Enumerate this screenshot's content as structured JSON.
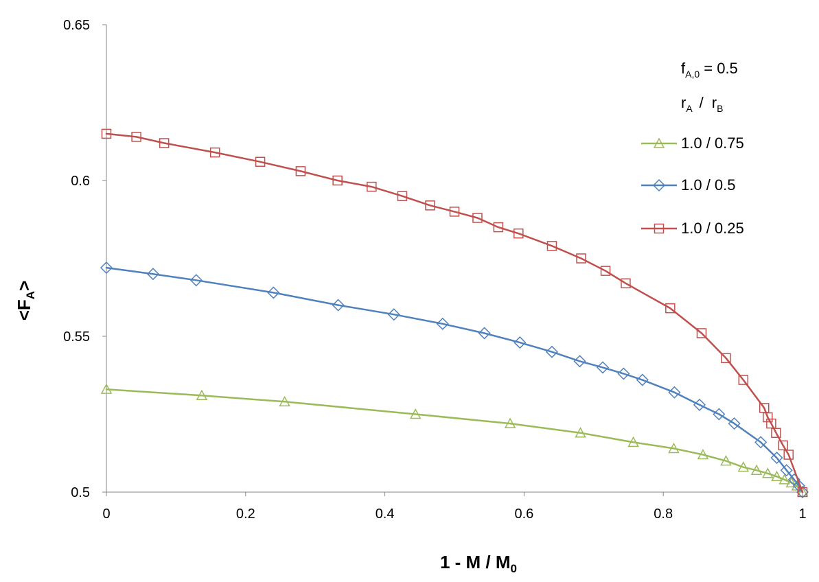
{
  "chart_data": {
    "type": "line",
    "xlabel": {
      "main": "1 - M / M",
      "sub": "0"
    },
    "ylabel": {
      "main": "<F",
      "sub": "A",
      "suffix": ">"
    },
    "xlim": [
      0,
      1
    ],
    "ylim": [
      0.5,
      0.65
    ],
    "x_ticks": [
      "0",
      "0.2",
      "0.4",
      "0.6",
      "0.8",
      "1"
    ],
    "y_ticks": [
      "0.5",
      "0.55",
      "0.6",
      "0.65"
    ],
    "grid": false,
    "legend_position": "top-right",
    "legend_header": {
      "line1": {
        "f": "f",
        "sub": "A,0",
        "rest": " = 0.5"
      },
      "line2": {
        "r1": "r",
        "sub1": "A",
        "slash": "/",
        "r2": "r",
        "sub2": "B"
      }
    },
    "series": [
      {
        "name": "1.0 / 0.75",
        "color": "#9bbb59",
        "marker": "triangle",
        "points": [
          [
            0,
            0.533
          ],
          [
            0.137,
            0.531
          ],
          [
            0.256,
            0.529
          ],
          [
            0.444,
            0.525
          ],
          [
            0.58,
            0.522
          ],
          [
            0.681,
            0.519
          ],
          [
            0.757,
            0.516
          ],
          [
            0.815,
            0.514
          ],
          [
            0.857,
            0.512
          ],
          [
            0.89,
            0.51
          ],
          [
            0.915,
            0.508
          ],
          [
            0.934,
            0.507
          ],
          [
            0.95,
            0.506
          ],
          [
            0.963,
            0.505
          ],
          [
            0.974,
            0.504
          ],
          [
            0.984,
            0.503
          ],
          [
            0.992,
            0.502
          ],
          [
            1.0,
            0.5
          ]
        ]
      },
      {
        "name": "1.0 / 0.5",
        "color": "#4f81bd",
        "marker": "diamond",
        "points": [
          [
            0,
            0.572
          ],
          [
            0.067,
            0.57
          ],
          [
            0.129,
            0.568
          ],
          [
            0.24,
            0.564
          ],
          [
            0.333,
            0.56
          ],
          [
            0.413,
            0.557
          ],
          [
            0.483,
            0.554
          ],
          [
            0.543,
            0.551
          ],
          [
            0.594,
            0.548
          ],
          [
            0.64,
            0.545
          ],
          [
            0.68,
            0.542
          ],
          [
            0.713,
            0.54
          ],
          [
            0.743,
            0.538
          ],
          [
            0.77,
            0.536
          ],
          [
            0.816,
            0.532
          ],
          [
            0.852,
            0.528
          ],
          [
            0.88,
            0.525
          ],
          [
            0.902,
            0.522
          ],
          [
            0.94,
            0.516
          ],
          [
            0.963,
            0.511
          ],
          [
            0.977,
            0.507
          ],
          [
            0.988,
            0.504
          ],
          [
            0.995,
            0.502
          ],
          [
            1.0,
            0.5
          ]
        ]
      },
      {
        "name": "1.0 / 0.25",
        "color": "#c0504d",
        "marker": "square",
        "points": [
          [
            0,
            0.615
          ],
          [
            0.043,
            0.614
          ],
          [
            0.083,
            0.612
          ],
          [
            0.156,
            0.609
          ],
          [
            0.221,
            0.606
          ],
          [
            0.279,
            0.603
          ],
          [
            0.332,
            0.6
          ],
          [
            0.381,
            0.598
          ],
          [
            0.425,
            0.595
          ],
          [
            0.465,
            0.592
          ],
          [
            0.5,
            0.59
          ],
          [
            0.533,
            0.588
          ],
          [
            0.563,
            0.585
          ],
          [
            0.592,
            0.583
          ],
          [
            0.64,
            0.579
          ],
          [
            0.682,
            0.575
          ],
          [
            0.717,
            0.571
          ],
          [
            0.746,
            0.567
          ],
          [
            0.81,
            0.559
          ],
          [
            0.855,
            0.551
          ],
          [
            0.89,
            0.543
          ],
          [
            0.915,
            0.536
          ],
          [
            0.945,
            0.527
          ],
          [
            0.95,
            0.524
          ],
          [
            0.955,
            0.522
          ],
          [
            0.962,
            0.519
          ],
          [
            0.972,
            0.515
          ],
          [
            0.98,
            0.512
          ],
          [
            1.0,
            0.5
          ]
        ]
      }
    ]
  }
}
